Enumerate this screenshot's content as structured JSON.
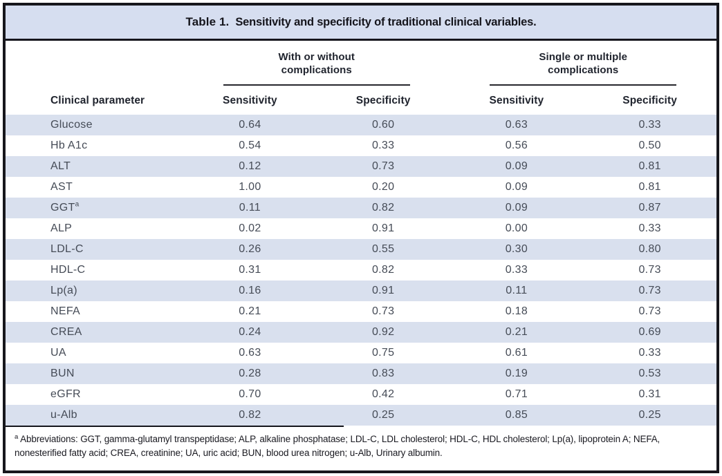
{
  "title": {
    "label": "Table 1.",
    "text": "Sensitivity and specificity of traditional clinical variables."
  },
  "table": {
    "group_headers": [
      {
        "line1": "With or without",
        "line2": "complications"
      },
      {
        "line1": "Single or multiple",
        "line2": "complications"
      }
    ],
    "column_headers": {
      "parameter": "Clinical parameter",
      "cols": [
        "Sensitivity",
        "Specificity",
        "Sensitivity",
        "Specificity"
      ]
    },
    "rows": [
      {
        "parameter": "Glucose",
        "values": [
          "0.64",
          "0.60",
          "0.63",
          "0.33"
        ]
      },
      {
        "parameter": "Hb A1c",
        "values": [
          "0.54",
          "0.33",
          "0.56",
          "0.50"
        ]
      },
      {
        "parameter": "ALT",
        "values": [
          "0.12",
          "0.73",
          "0.09",
          "0.81"
        ]
      },
      {
        "parameter": "AST",
        "values": [
          "1.00",
          "0.20",
          "0.09",
          "0.81"
        ]
      },
      {
        "parameter": "GGT",
        "sup": "a",
        "values": [
          "0.11",
          "0.82",
          "0.09",
          "0.87"
        ]
      },
      {
        "parameter": "ALP",
        "values": [
          "0.02",
          "0.91",
          "0.00",
          "0.33"
        ]
      },
      {
        "parameter": "LDL-C",
        "values": [
          "0.26",
          "0.55",
          "0.30",
          "0.80"
        ]
      },
      {
        "parameter": "HDL-C",
        "values": [
          "0.31",
          "0.82",
          "0.33",
          "0.73"
        ]
      },
      {
        "parameter": "Lp(a)",
        "values": [
          "0.16",
          "0.91",
          "0.11",
          "0.73"
        ]
      },
      {
        "parameter": "NEFA",
        "values": [
          "0.21",
          "0.73",
          "0.18",
          "0.73"
        ]
      },
      {
        "parameter": "CREA",
        "values": [
          "0.24",
          "0.92",
          "0.21",
          "0.69"
        ]
      },
      {
        "parameter": "UA",
        "values": [
          "0.63",
          "0.75",
          "0.61",
          "0.33"
        ]
      },
      {
        "parameter": "BUN",
        "values": [
          "0.28",
          "0.83",
          "0.19",
          "0.53"
        ]
      },
      {
        "parameter": "eGFR",
        "values": [
          "0.70",
          "0.42",
          "0.71",
          "0.31"
        ]
      },
      {
        "parameter": "u-Alb",
        "values": [
          "0.82",
          "0.25",
          "0.85",
          "0.25"
        ]
      }
    ]
  },
  "footnote": {
    "marker": "a",
    "text": "Abbreviations: GGT, gamma-glutamyl transpeptidase; ALP, alkaline phosphatase; LDL-C, LDL cholesterol; HDL-C, HDL cholesterol; Lp(a), lipoprotein A; NEFA, nonesterified fatty acid; CREA, creatinine; UA, uric acid; BUN, blood urea nitrogen; u-Alb, Urinary albumin."
  },
  "colors": {
    "title_bar_bg": "#d6def0",
    "row_stripe_bg": "#d9e0ee",
    "frame_border": "#17171c",
    "header_text": "#20242e",
    "body_text": "#454b56"
  },
  "chart_data": {
    "type": "table",
    "title": "Table 1. Sensitivity and specificity of traditional clinical variables.",
    "column_groups": [
      "With or without complications",
      "Single or multiple complications"
    ],
    "columns": [
      "Clinical parameter",
      "Sensitivity",
      "Specificity",
      "Sensitivity",
      "Specificity"
    ],
    "rows": [
      [
        "Glucose",
        0.64,
        0.6,
        0.63,
        0.33
      ],
      [
        "Hb A1c",
        0.54,
        0.33,
        0.56,
        0.5
      ],
      [
        "ALT",
        0.12,
        0.73,
        0.09,
        0.81
      ],
      [
        "AST",
        1.0,
        0.2,
        0.09,
        0.81
      ],
      [
        "GGT",
        0.11,
        0.82,
        0.09,
        0.87
      ],
      [
        "ALP",
        0.02,
        0.91,
        0.0,
        0.33
      ],
      [
        "LDL-C",
        0.26,
        0.55,
        0.3,
        0.8
      ],
      [
        "HDL-C",
        0.31,
        0.82,
        0.33,
        0.73
      ],
      [
        "Lp(a)",
        0.16,
        0.91,
        0.11,
        0.73
      ],
      [
        "NEFA",
        0.21,
        0.73,
        0.18,
        0.73
      ],
      [
        "CREA",
        0.24,
        0.92,
        0.21,
        0.69
      ],
      [
        "UA",
        0.63,
        0.75,
        0.61,
        0.33
      ],
      [
        "BUN",
        0.28,
        0.83,
        0.19,
        0.53
      ],
      [
        "eGFR",
        0.7,
        0.42,
        0.71,
        0.31
      ],
      [
        "u-Alb",
        0.82,
        0.25,
        0.85,
        0.25
      ]
    ]
  }
}
